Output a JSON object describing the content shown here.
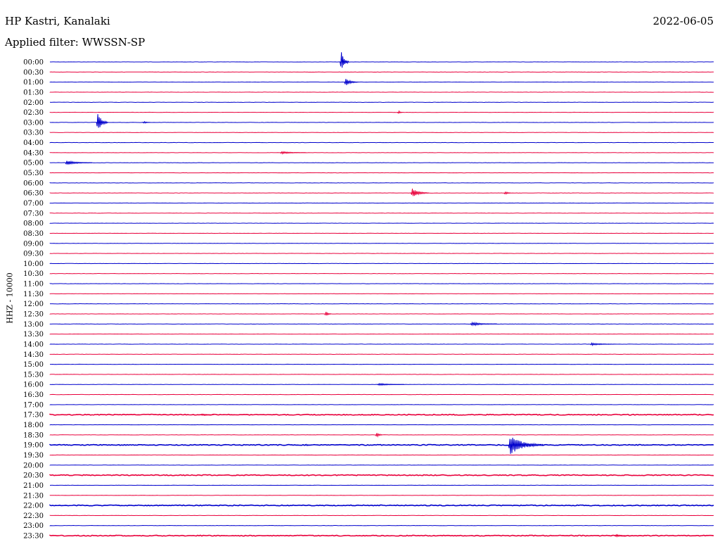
{
  "header": {
    "station": "HP Kastri, Kanalaki",
    "filter": "Applied filter: WWSSN-SP",
    "date": "2022-06-05",
    "channel": "HHZ - 10000"
  },
  "chart_data": {
    "type": "line",
    "title": "HP Kastri, Kanalaki",
    "subtitle": "Applied filter: WWSSN-SP",
    "ylabel": "HHZ - 10000",
    "trace_colors": [
      "#0000cc",
      "#e8003c"
    ],
    "row_labels": [
      "00:00",
      "00:30",
      "01:00",
      "01:30",
      "02:00",
      "02:30",
      "03:00",
      "03:30",
      "04:00",
      "04:30",
      "05:00",
      "05:30",
      "06:00",
      "06:30",
      "07:00",
      "07:30",
      "08:00",
      "08:30",
      "09:00",
      "09:30",
      "10:00",
      "10:30",
      "11:00",
      "11:30",
      "12:00",
      "12:30",
      "13:00",
      "13:30",
      "14:00",
      "14:30",
      "15:00",
      "15:30",
      "16:00",
      "16:30",
      "17:00",
      "17:30",
      "18:00",
      "18:30",
      "19:00",
      "19:30",
      "20:00",
      "20:30",
      "21:00",
      "21:30",
      "22:00",
      "22:30",
      "23:00",
      "23:30"
    ],
    "x_minutes": [
      0,
      30
    ],
    "events": [
      {
        "row": 0,
        "minute": 13.1,
        "amplitude": 22,
        "duration": 0.4
      },
      {
        "row": 2,
        "minute": 13.3,
        "amplitude": 7,
        "duration": 0.6
      },
      {
        "row": 6,
        "minute": 2.1,
        "amplitude": 20,
        "duration": 0.5
      },
      {
        "row": 6,
        "minute": 4.2,
        "amplitude": 3,
        "duration": 0.3
      },
      {
        "row": 5,
        "minute": 15.7,
        "amplitude": 5,
        "duration": 0.2
      },
      {
        "row": 10,
        "minute": 0.7,
        "amplitude": 4,
        "duration": 1.2
      },
      {
        "row": 13,
        "minute": 16.3,
        "amplitude": 8,
        "duration": 0.8
      },
      {
        "row": 13,
        "minute": 20.5,
        "amplitude": 4,
        "duration": 0.3
      },
      {
        "row": 25,
        "minute": 12.4,
        "amplitude": 6,
        "duration": 0.3
      },
      {
        "row": 26,
        "minute": 19.0,
        "amplitude": 3,
        "duration": 1.2
      },
      {
        "row": 37,
        "minute": 14.7,
        "amplitude": 7,
        "duration": 0.3
      },
      {
        "row": 38,
        "minute": 20.7,
        "amplitude": 16,
        "duration": 1.6
      },
      {
        "row": 38,
        "minute": 11.5,
        "amplitude": 2,
        "duration": 0.3
      },
      {
        "row": 35,
        "minute": 6.8,
        "amplitude": 2,
        "duration": 0.6
      },
      {
        "row": 28,
        "minute": 24.4,
        "amplitude": 2,
        "duration": 1.2
      },
      {
        "row": 32,
        "minute": 14.8,
        "amplitude": 2,
        "duration": 1.2
      },
      {
        "row": 47,
        "minute": 25.5,
        "amplitude": 2,
        "duration": 0.8
      },
      {
        "row": 9,
        "minute": 10.4,
        "amplitude": 2,
        "duration": 1.2
      }
    ],
    "noise_rows": [
      35,
      38,
      41,
      44,
      47
    ]
  }
}
